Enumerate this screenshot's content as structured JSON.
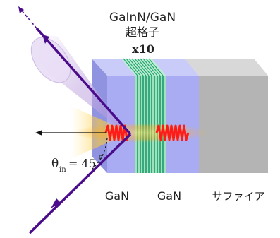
{
  "labels": {
    "superlattice_line1": "GaInN/GaN",
    "superlattice_line2": "超格子",
    "repeat_count": "x10",
    "layer_left": "GaN",
    "layer_middle": "GaN",
    "layer_right": "サファイア",
    "angle_theta": "θ",
    "angle_sub": "in",
    "angle_value": "= 45",
    "angle_unit": "o"
  },
  "colors": {
    "beam": "#4b0c8c",
    "gan_layer": "#a9acf2",
    "sapphire": "#b4b4b4",
    "superlattice_green": "#1f9a6e",
    "emission_red": "#ff1a1a",
    "glow_yellow": "#ffcc33"
  }
}
